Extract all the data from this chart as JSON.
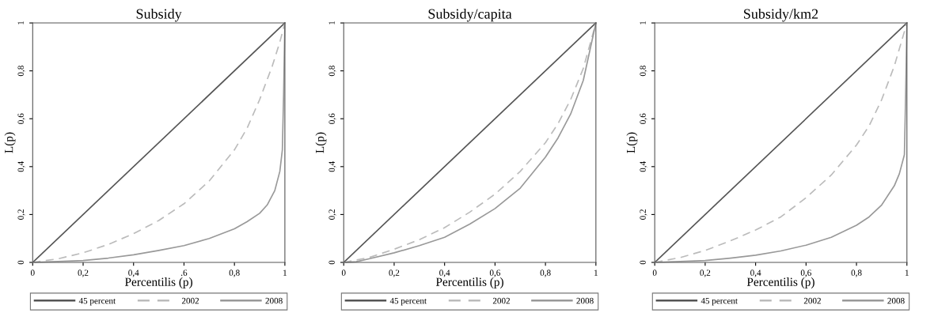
{
  "chart_data": [
    {
      "type": "line",
      "title": "Subsidy",
      "xlabel": "Percentilis (p)",
      "ylabel": "L(p)",
      "xlim": [
        0,
        1
      ],
      "ylim": [
        0,
        1
      ],
      "xticks": [
        0,
        {
          "value": 0.2,
          "label": "0,2"
        },
        {
          "value": 0.4,
          "label": "0,4"
        },
        {
          "value": 0.6,
          "label": ".6"
        },
        {
          "value": 0.8,
          "label": "0,8"
        },
        1
      ],
      "yticks": [
        0,
        {
          "value": 0.2,
          "label": "0,2"
        },
        {
          "value": 0.4,
          "label": "0,4"
        },
        {
          "value": 0.6,
          "label": "0,6"
        },
        {
          "value": 0.8,
          "label": "0,8"
        },
        1
      ],
      "grid": false,
      "legend": "bottom",
      "series": [
        {
          "name": "45 percent",
          "color": "#555555",
          "line_style": "solid",
          "x": [
            0,
            1
          ],
          "values": [
            0,
            1
          ]
        },
        {
          "name": "2002",
          "color": "#bbbbbb",
          "line_style": "dashed",
          "x": [
            0,
            0.1,
            0.2,
            0.3,
            0.4,
            0.5,
            0.6,
            0.7,
            0.8,
            0.85,
            0.9,
            0.95,
            0.98,
            1
          ],
          "values": [
            0,
            0.015,
            0.04,
            0.075,
            0.12,
            0.175,
            0.245,
            0.34,
            0.47,
            0.56,
            0.68,
            0.82,
            0.92,
            1
          ]
        },
        {
          "name": "2008",
          "color": "#999999",
          "line_style": "solid",
          "x": [
            0,
            0.2,
            0.3,
            0.4,
            0.5,
            0.6,
            0.7,
            0.8,
            0.85,
            0.9,
            0.93,
            0.96,
            0.98,
            0.99,
            0.995,
            1
          ],
          "values": [
            0,
            0.008,
            0.018,
            0.032,
            0.05,
            0.07,
            0.1,
            0.14,
            0.17,
            0.205,
            0.24,
            0.3,
            0.38,
            0.47,
            0.7,
            1
          ]
        }
      ]
    },
    {
      "type": "line",
      "title": "Subsidy/capita",
      "xlabel": "Percentilis (p)",
      "ylabel": "L(p)",
      "xlim": [
        0,
        1
      ],
      "ylim": [
        0,
        1
      ],
      "xticks": [
        0,
        {
          "value": 0.2,
          "label": "0,2"
        },
        {
          "value": 0.4,
          "label": "0,4"
        },
        {
          "value": 0.6,
          "label": "0,6"
        },
        {
          "value": 0.8,
          "label": "0,8"
        },
        1
      ],
      "yticks": [
        0,
        {
          "value": 0.2,
          "label": "0,2"
        },
        {
          "value": 0.4,
          "label": "0,4"
        },
        {
          "value": 0.6,
          "label": "0,6"
        },
        {
          "value": 0.8,
          "label": "0,8"
        },
        1
      ],
      "grid": false,
      "legend": "bottom",
      "series": [
        {
          "name": "45 percent",
          "color": "#555555",
          "line_style": "solid",
          "x": [
            0,
            1
          ],
          "values": [
            0,
            1
          ]
        },
        {
          "name": "2002",
          "color": "#bbbbbb",
          "line_style": "dashed",
          "x": [
            0,
            0.1,
            0.2,
            0.3,
            0.4,
            0.5,
            0.6,
            0.7,
            0.8,
            0.85,
            0.9,
            0.95,
            1
          ],
          "values": [
            0,
            0.02,
            0.055,
            0.095,
            0.145,
            0.21,
            0.285,
            0.38,
            0.5,
            0.58,
            0.68,
            0.81,
            1
          ]
        },
        {
          "name": "2008",
          "color": "#999999",
          "line_style": "solid",
          "x": [
            0,
            0.05,
            0.1,
            0.2,
            0.3,
            0.4,
            0.5,
            0.6,
            0.7,
            0.8,
            0.85,
            0.9,
            0.95,
            1
          ],
          "values": [
            0,
            0.003,
            0.015,
            0.04,
            0.07,
            0.105,
            0.16,
            0.225,
            0.31,
            0.44,
            0.52,
            0.62,
            0.76,
            1
          ]
        }
      ]
    },
    {
      "type": "line",
      "title": "Subsidy/km2",
      "xlabel": "Percentilis (p)",
      "ylabel": "L(p)",
      "xlim": [
        0,
        1
      ],
      "ylim": [
        0,
        1
      ],
      "xticks": [
        0,
        {
          "value": 0.2,
          "label": "0,2"
        },
        {
          "value": 0.4,
          "label": "0,4"
        },
        {
          "value": 0.6,
          "label": "0,6"
        },
        {
          "value": 0.8,
          "label": "0,8"
        },
        1
      ],
      "yticks": [
        0,
        {
          "value": 0.2,
          "label": "0,2"
        },
        {
          "value": 0.4,
          "label": "0,4"
        },
        {
          "value": 0.6,
          "label": "0,6"
        },
        {
          "value": 0.8,
          "label": "0,8"
        },
        1
      ],
      "grid": false,
      "legend": "bottom",
      "series": [
        {
          "name": "45 percent",
          "color": "#555555",
          "line_style": "solid",
          "x": [
            0,
            1
          ],
          "values": [
            0,
            1
          ]
        },
        {
          "name": "2002",
          "color": "#bbbbbb",
          "line_style": "dashed",
          "x": [
            0,
            0.1,
            0.2,
            0.3,
            0.4,
            0.5,
            0.6,
            0.7,
            0.8,
            0.85,
            0.9,
            0.95,
            1
          ],
          "values": [
            0,
            0.02,
            0.05,
            0.09,
            0.135,
            0.19,
            0.27,
            0.365,
            0.49,
            0.57,
            0.68,
            0.82,
            1
          ]
        },
        {
          "name": "2008",
          "color": "#999999",
          "line_style": "solid",
          "x": [
            0,
            0.2,
            0.3,
            0.4,
            0.5,
            0.6,
            0.7,
            0.8,
            0.85,
            0.9,
            0.95,
            0.97,
            0.99,
            0.995,
            1
          ],
          "values": [
            0,
            0.008,
            0.018,
            0.03,
            0.048,
            0.072,
            0.105,
            0.155,
            0.19,
            0.24,
            0.32,
            0.37,
            0.45,
            0.7,
            1
          ]
        }
      ]
    }
  ]
}
